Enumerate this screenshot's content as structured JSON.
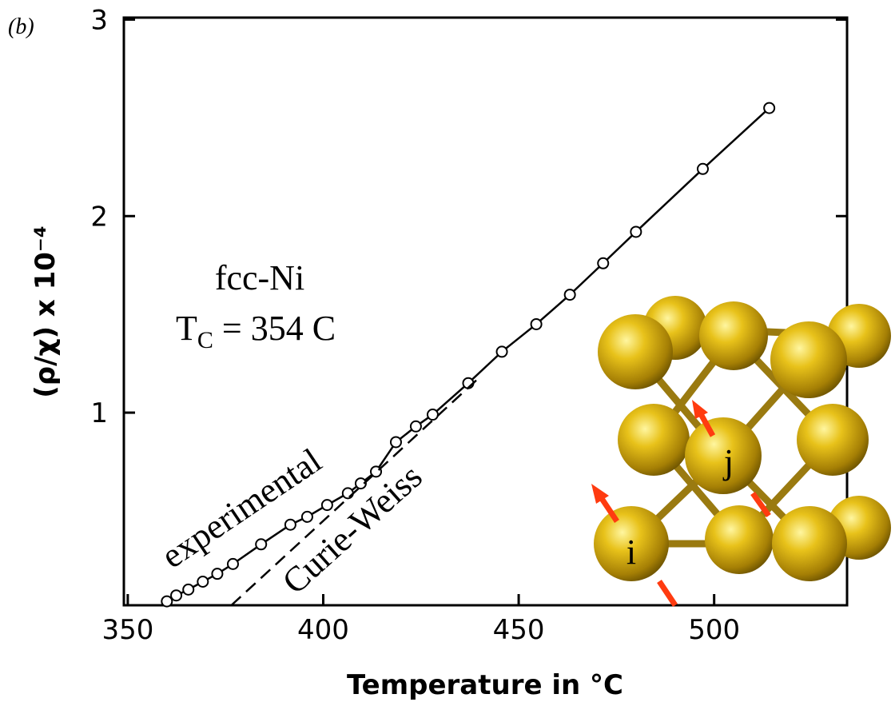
{
  "chart_data": {
    "type": "line",
    "panel_label": "(b)",
    "xlabel": "Temperature in °C",
    "ylabel": "(ρ/χ) x 10⁻⁴",
    "xlim": [
      349,
      534
    ],
    "ylim": [
      0.02,
      3.01
    ],
    "xticks": [
      350,
      400,
      450,
      500
    ],
    "yticks": [
      1,
      2,
      3
    ],
    "series": [
      {
        "name": "experimental",
        "color": "#000000",
        "style": "solid",
        "markers": true,
        "x": [
          360,
          362.4,
          365.5,
          369.2,
          372.9,
          376.9,
          384.1,
          391.6,
          395.9,
          401.0,
          406.3,
          409.6,
          413.5,
          418.6,
          423.7,
          428.0,
          437.1,
          445.7,
          454.5,
          463.1,
          471.6,
          480.0,
          497.1,
          514.1
        ],
        "values": [
          0.04,
          0.07,
          0.1,
          0.14,
          0.18,
          0.23,
          0.33,
          0.43,
          0.47,
          0.53,
          0.59,
          0.64,
          0.7,
          0.85,
          0.93,
          0.99,
          1.15,
          1.31,
          1.45,
          1.6,
          1.76,
          1.92,
          2.24,
          2.55
        ]
      },
      {
        "name": "Curie-Weiss",
        "color": "#000000",
        "style": "dashed",
        "markers": false,
        "x": [
          376.5,
          440
        ],
        "values": [
          0.02,
          1.18
        ]
      }
    ],
    "annotation": {
      "line1": "fcc-Ni",
      "t": "T",
      "sub": "C",
      "rest": " = 354 C"
    },
    "inset_labels": [
      "i",
      "j"
    ]
  }
}
